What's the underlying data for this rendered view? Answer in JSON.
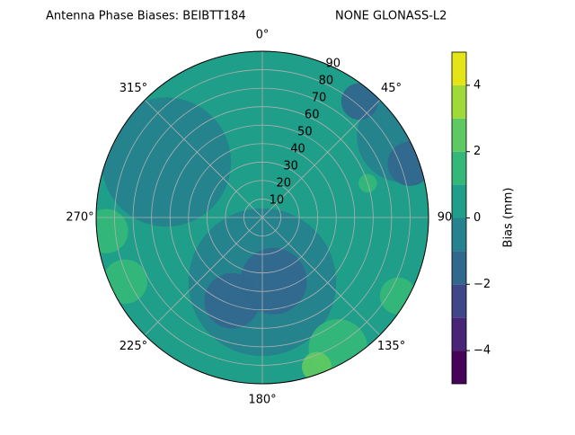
{
  "chart_data": {
    "type": "polar_contour",
    "title": "Antenna Phase Biases: BEIBTT184",
    "subtitle": "NONE GLONASS-L2",
    "colorbar_label": "Bias (mm)",
    "rlim": [
      0,
      90
    ],
    "rticks": [
      10,
      20,
      30,
      40,
      50,
      60,
      70,
      80,
      90
    ],
    "thetaticks": [
      {
        "value": 0,
        "label": "0°"
      },
      {
        "value": 45,
        "label": "45°"
      },
      {
        "value": 90,
        "label": "90"
      },
      {
        "value": 135,
        "label": "135°"
      },
      {
        "value": 180,
        "label": "180°"
      },
      {
        "value": 225,
        "label": "225°"
      },
      {
        "value": 270,
        "label": "270°"
      },
      {
        "value": 315,
        "label": "315°"
      }
    ],
    "grid": true,
    "clim": [
      -5,
      5
    ],
    "levels": [
      -5,
      -4,
      -3,
      -2,
      -1,
      0,
      1,
      2,
      3,
      4,
      5
    ],
    "colors": [
      "#450457",
      "#482577",
      "#3f4788",
      "#31688e",
      "#26828e",
      "#1f9e89",
      "#35b779",
      "#5ec962",
      "#a0da39",
      "#e5e419"
    ],
    "cticks": [
      {
        "value": -4,
        "label": "−4"
      },
      {
        "value": -2,
        "label": "−2"
      },
      0,
      2,
      4
    ],
    "background_level": 0.5,
    "patches": [
      {
        "az": 300,
        "zen": 60,
        "level": -0.5,
        "extent": 35
      },
      {
        "az": 180,
        "zen": 35,
        "level": -0.5,
        "extent": 40
      },
      {
        "az": 60,
        "zen": 88,
        "level": -0.5,
        "extent": 25
      },
      {
        "az": 170,
        "zen": 35,
        "level": -1.5,
        "extent": 18
      },
      {
        "az": 200,
        "zen": 48,
        "level": -1.5,
        "extent": 15
      },
      {
        "az": 70,
        "zen": 85,
        "level": -1.5,
        "extent": 12
      },
      {
        "az": 40,
        "zen": 82,
        "level": -1.5,
        "extent": 10
      },
      {
        "az": 265,
        "zen": 85,
        "level": 1.5,
        "extent": 12
      },
      {
        "az": 245,
        "zen": 82,
        "level": 1.5,
        "extent": 12
      },
      {
        "az": 150,
        "zen": 82,
        "level": 1.5,
        "extent": 16
      },
      {
        "az": 120,
        "zen": 85,
        "level": 1.5,
        "extent": 10
      },
      {
        "az": 160,
        "zen": 86,
        "level": 2.5,
        "extent": 8
      },
      {
        "az": 72,
        "zen": 60,
        "level": 1.5,
        "extent": 5
      }
    ]
  }
}
